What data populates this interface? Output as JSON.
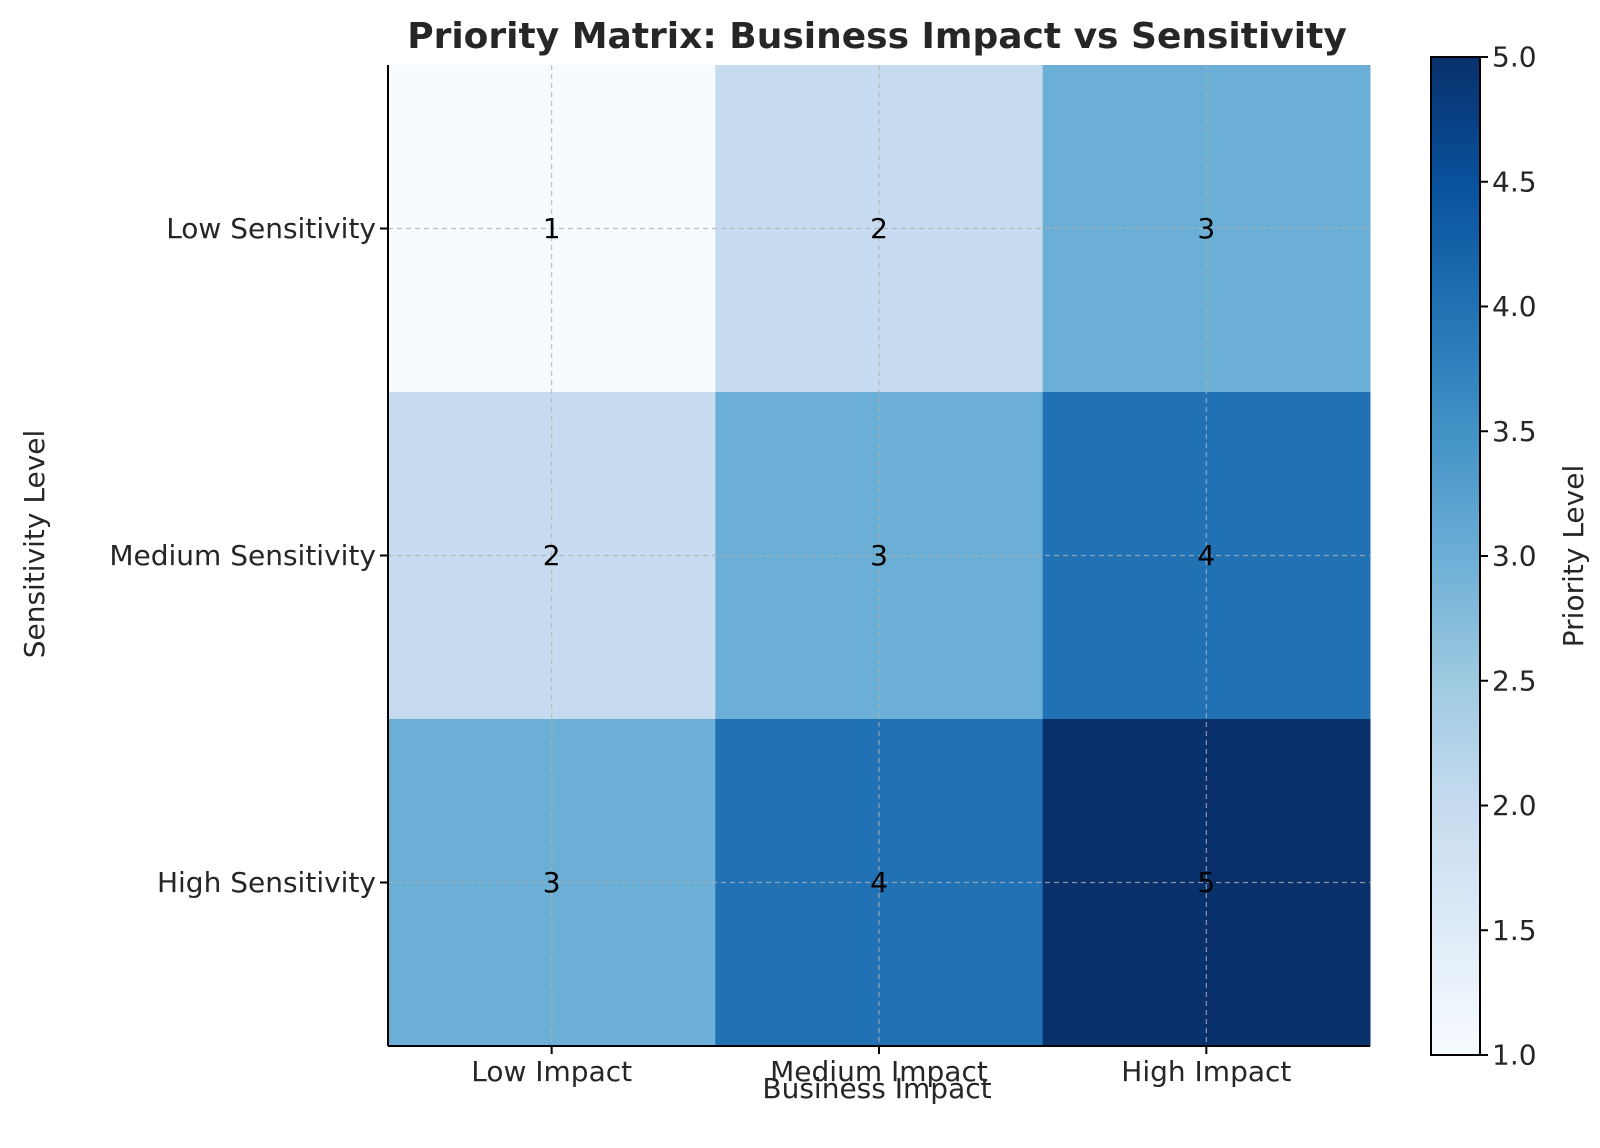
{
  "chart_data": {
    "type": "heatmap",
    "title": "Priority Matrix: Business Impact vs Sensitivity",
    "xlabel": "Business Impact",
    "ylabel": "Sensitivity Level",
    "x_categories": [
      "Low Impact",
      "Medium Impact",
      "High Impact"
    ],
    "y_categories": [
      "Low Sensitivity",
      "Medium Sensitivity",
      "High Sensitivity"
    ],
    "values": [
      [
        1,
        2,
        3
      ],
      [
        2,
        3,
        4
      ],
      [
        3,
        4,
        5
      ]
    ],
    "grid": true,
    "colormap": "Blues",
    "colorbar": {
      "label": "Priority Level",
      "min": 1.0,
      "max": 5.0,
      "ticks": [
        "1.0",
        "1.5",
        "2.0",
        "2.5",
        "3.0",
        "3.5",
        "4.0",
        "4.5",
        "5.0"
      ]
    }
  }
}
